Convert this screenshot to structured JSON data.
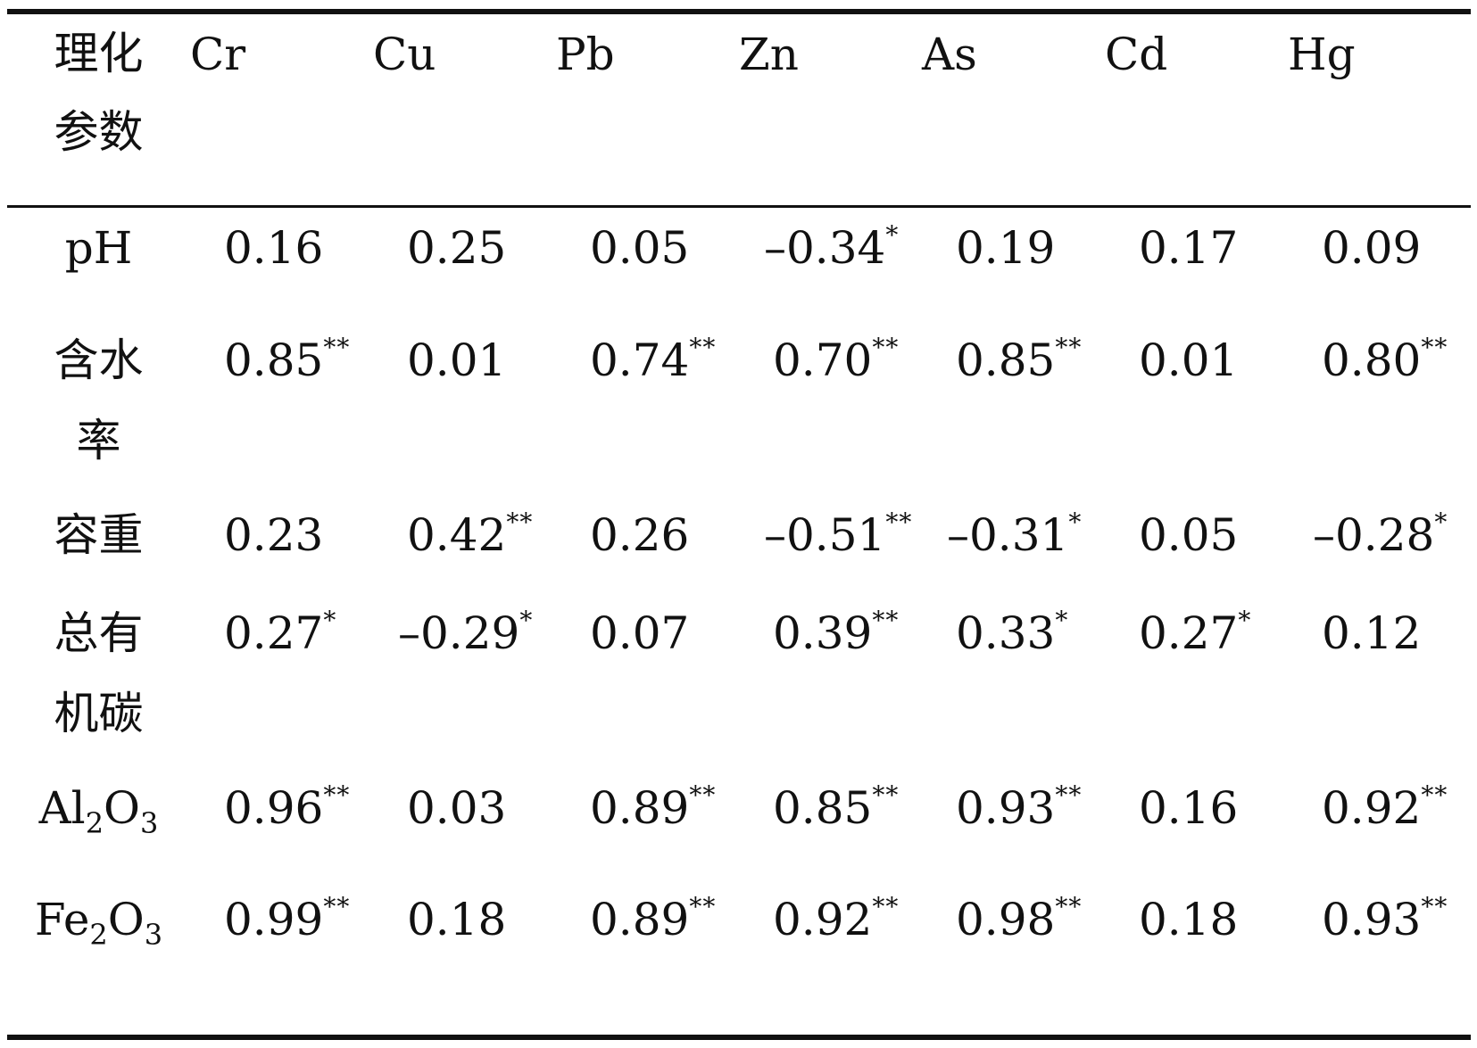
{
  "table": {
    "header": {
      "param_label": "理化参数",
      "metals": [
        "Cr",
        "Cu",
        "Pb",
        "Zn",
        "As",
        "Cd",
        "Hg"
      ]
    },
    "rows": [
      {
        "param": "pH",
        "values": [
          "0.16",
          "0.25",
          "0.05",
          "–0.34",
          "0.19",
          "0.17",
          "0.09"
        ],
        "sig": [
          "",
          "",
          "",
          "*",
          "",
          "",
          ""
        ]
      },
      {
        "param": "含水率",
        "values": [
          "0.85",
          "0.01",
          "0.74",
          "0.70",
          "0.85",
          "0.01",
          "0.80"
        ],
        "sig": [
          "**",
          "",
          "**",
          "**",
          "**",
          "",
          "**"
        ]
      },
      {
        "param": "容重",
        "values": [
          "0.23",
          "0.42",
          "0.26",
          "–0.51",
          "–0.31",
          "0.05",
          "–0.28"
        ],
        "sig": [
          "",
          "**",
          "",
          "**",
          "*",
          "",
          "*"
        ]
      },
      {
        "param": "总有机碳",
        "values": [
          "0.27",
          "–0.29",
          "0.07",
          "0.39",
          "0.33",
          "0.27",
          "0.12"
        ],
        "sig": [
          "*",
          "*",
          "",
          "**",
          "*",
          "*",
          ""
        ]
      },
      {
        "param_main": "Al",
        "param_sub1": "2",
        "param_mid": "O",
        "param_sub2": "3",
        "values": [
          "0.96",
          "0.03",
          "0.89",
          "0.85",
          "0.93",
          "0.16",
          "0.92"
        ],
        "sig": [
          "**",
          "",
          "**",
          "**",
          "**",
          "",
          "**"
        ]
      },
      {
        "param_main": "Fe",
        "param_sub1": "2",
        "param_mid": "O",
        "param_sub2": "3",
        "values": [
          "0.99",
          "0.18",
          "0.89",
          "0.92",
          "0.98",
          "0.18",
          "0.93"
        ],
        "sig": [
          "**",
          "",
          "**",
          "**",
          "**",
          "",
          "**"
        ]
      }
    ]
  }
}
